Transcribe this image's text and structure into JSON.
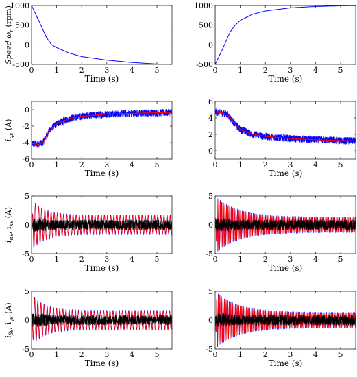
{
  "chart_data": [
    {
      "type": "line",
      "ylabel": "Speed ω_r (rpm)",
      "xlabel": "Time (s)",
      "xlim": [
        0,
        5.6
      ],
      "ylim": [
        -500,
        1000
      ],
      "xticks": [
        0,
        1,
        2,
        3,
        4,
        5
      ],
      "yticks": [
        -500,
        0,
        500,
        1000
      ],
      "series": [
        {
          "color": "#0000ff",
          "kind": "decay",
          "start": 1000,
          "end": -500,
          "x": [
            0,
            0.3,
            0.6,
            0.8,
            1,
            1.5,
            2,
            3,
            4,
            5,
            5.6
          ],
          "y": [
            1000,
            600,
            180,
            0,
            -70,
            -210,
            -300,
            -390,
            -450,
            -490,
            -500
          ]
        },
        {
          "color": "#ff0000",
          "kind": "reference",
          "x": [
            0,
            0,
            5.6
          ],
          "y": [
            1000,
            -500,
            -500
          ]
        }
      ]
    },
    {
      "type": "line",
      "ylabel": "",
      "xlabel": "Time (s)",
      "xlim": [
        0,
        5.6
      ],
      "ylim": [
        -500,
        1000
      ],
      "xticks": [
        0,
        1,
        2,
        3,
        4,
        5
      ],
      "yticks": [
        -500,
        0,
        500,
        1000
      ],
      "series": [
        {
          "color": "#0000ff",
          "kind": "rise",
          "x": [
            0,
            0.3,
            0.6,
            0.8,
            1,
            1.5,
            2,
            3,
            4,
            5,
            5.6
          ],
          "y": [
            -500,
            -100,
            330,
            500,
            620,
            780,
            860,
            940,
            975,
            992,
            996
          ]
        },
        {
          "color": "#ff0000",
          "kind": "reference",
          "x": [
            0,
            0,
            5.6
          ],
          "y": [
            -500,
            1000,
            1000
          ]
        }
      ]
    },
    {
      "type": "line",
      "ylabel": "i_qs (A)",
      "xlabel": "Time (s)",
      "xlim": [
        0,
        5.6
      ],
      "ylim": [
        -6,
        1
      ],
      "xticks": [
        0,
        1,
        2,
        3,
        4,
        5
      ],
      "yticks": [
        -6,
        -4,
        -2,
        0
      ],
      "series": [
        {
          "color": "#0000ff",
          "kind": "noisy",
          "band": 0.45,
          "x": [
            0,
            0.3,
            0.45,
            0.7,
            1,
            1.5,
            2,
            3,
            4,
            5,
            5.6
          ],
          "y": [
            -4.1,
            -4.2,
            -4.0,
            -2.6,
            -1.7,
            -1.1,
            -0.8,
            -0.55,
            -0.45,
            -0.38,
            -0.35
          ]
        },
        {
          "color": "#ff0000",
          "kind": "mean",
          "x": [
            0,
            0.3,
            0.45,
            0.7,
            1,
            1.5,
            2,
            3,
            4,
            5,
            5.6
          ],
          "y": [
            -4.1,
            -4.2,
            -4.0,
            -2.6,
            -1.7,
            -1.1,
            -0.8,
            -0.55,
            -0.45,
            -0.38,
            -0.35
          ]
        }
      ]
    },
    {
      "type": "line",
      "ylabel": "",
      "xlabel": "Time (s)",
      "xlim": [
        0,
        5.6
      ],
      "ylim": [
        -1,
        6
      ],
      "xticks": [
        0,
        1,
        2,
        3,
        4,
        5
      ],
      "yticks": [
        0,
        2,
        4,
        6
      ],
      "series": [
        {
          "color": "#0000ff",
          "kind": "noisy",
          "band": 0.45,
          "x": [
            0,
            0.3,
            0.5,
            0.8,
            1,
            1.5,
            2,
            3,
            4,
            5,
            5.6
          ],
          "y": [
            4.7,
            4.6,
            4.4,
            3.2,
            2.6,
            2.0,
            1.75,
            1.5,
            1.35,
            1.25,
            1.2
          ]
        },
        {
          "color": "#ff0000",
          "kind": "mean",
          "x": [
            0,
            0.3,
            0.5,
            0.8,
            1,
            1.5,
            2,
            3,
            4,
            5,
            5.6
          ],
          "y": [
            4.7,
            4.6,
            4.4,
            3.2,
            2.6,
            2.0,
            1.75,
            1.5,
            1.35,
            1.25,
            1.2
          ]
        }
      ]
    },
    {
      "type": "line",
      "ylabel": "i_αs, i_xs (A)",
      "xlabel": "Time (s)",
      "xlim": [
        0,
        5.6
      ],
      "ylim": [
        -5,
        5
      ],
      "xticks": [
        0,
        1,
        2,
        3,
        4,
        5
      ],
      "yticks": [
        -5,
        0,
        5
      ],
      "series": [
        {
          "color": "#0000ff",
          "kind": "oscillation",
          "freq": 8,
          "amp_start": 4.5,
          "amp_end": 1.7,
          "tau": 0.5
        },
        {
          "color": "#ff0000",
          "kind": "oscillation",
          "freq": 8,
          "amp_start": 4.3,
          "amp_end": 1.6,
          "tau": 0.5
        },
        {
          "color": "#000000",
          "kind": "noise",
          "amp": 0.9
        }
      ]
    },
    {
      "type": "line",
      "ylabel": "",
      "xlabel": "Time (s)",
      "xlim": [
        0,
        5.6
      ],
      "ylim": [
        -5,
        5
      ],
      "xticks": [
        0,
        1,
        2,
        3,
        4,
        5
      ],
      "yticks": [
        -5,
        0,
        5
      ],
      "series": [
        {
          "color": "#0000ff",
          "kind": "oscillation",
          "freq": 16,
          "amp_start": 5.0,
          "amp_end": 1.3,
          "tau": 0.9
        },
        {
          "color": "#ff0000",
          "kind": "oscillation",
          "freq": 16,
          "amp_start": 4.8,
          "amp_end": 1.2,
          "tau": 0.9
        },
        {
          "color": "#000000",
          "kind": "noise",
          "amp": 0.9
        }
      ]
    },
    {
      "type": "line",
      "ylabel": "i_βs, i_ys (A)",
      "xlabel": "Time (s)",
      "xlim": [
        0,
        5.6
      ],
      "ylim": [
        -5,
        5
      ],
      "xticks": [
        0,
        1,
        2,
        3,
        4,
        5
      ],
      "yticks": [
        -5,
        0,
        5
      ],
      "series": [
        {
          "color": "#0000ff",
          "kind": "oscillation",
          "freq": 8,
          "amp_start": 4.5,
          "amp_end": 1.7,
          "tau": 0.5,
          "phase": 1.57
        },
        {
          "color": "#ff0000",
          "kind": "oscillation",
          "freq": 8,
          "amp_start": 4.3,
          "amp_end": 1.6,
          "tau": 0.5,
          "phase": 1.57
        },
        {
          "color": "#000000",
          "kind": "noise",
          "amp": 0.9
        }
      ]
    },
    {
      "type": "line",
      "ylabel": "",
      "xlabel": "Time (s)",
      "xlim": [
        0,
        5.6
      ],
      "ylim": [
        -5,
        5
      ],
      "xticks": [
        0,
        1,
        2,
        3,
        4,
        5
      ],
      "yticks": [
        -5,
        0,
        5
      ],
      "series": [
        {
          "color": "#0000ff",
          "kind": "oscillation",
          "freq": 16,
          "amp_start": 5.0,
          "amp_end": 1.3,
          "tau": 0.9,
          "phase": 1.57
        },
        {
          "color": "#ff0000",
          "kind": "oscillation",
          "freq": 16,
          "amp_start": 4.8,
          "amp_end": 1.2,
          "tau": 0.9,
          "phase": 1.57
        },
        {
          "color": "#000000",
          "kind": "noise",
          "amp": 0.9
        }
      ]
    }
  ],
  "ylabels": {
    "speed": {
      "main": "Speed ω",
      "sub": "r",
      "tail": " (rpm)"
    },
    "iqs": {
      "main": "i",
      "sub": "qs",
      "tail": " (A)"
    },
    "ialpha": {
      "main": "i",
      "sub": "αs",
      "mid": ", i",
      "sub2": "xs",
      "tail": " (A)"
    },
    "ibeta": {
      "main": "i",
      "sub": "βs",
      "mid": ", i",
      "sub2": "ys",
      "tail": " (A)"
    }
  },
  "xlabel_text": "Time (s)"
}
